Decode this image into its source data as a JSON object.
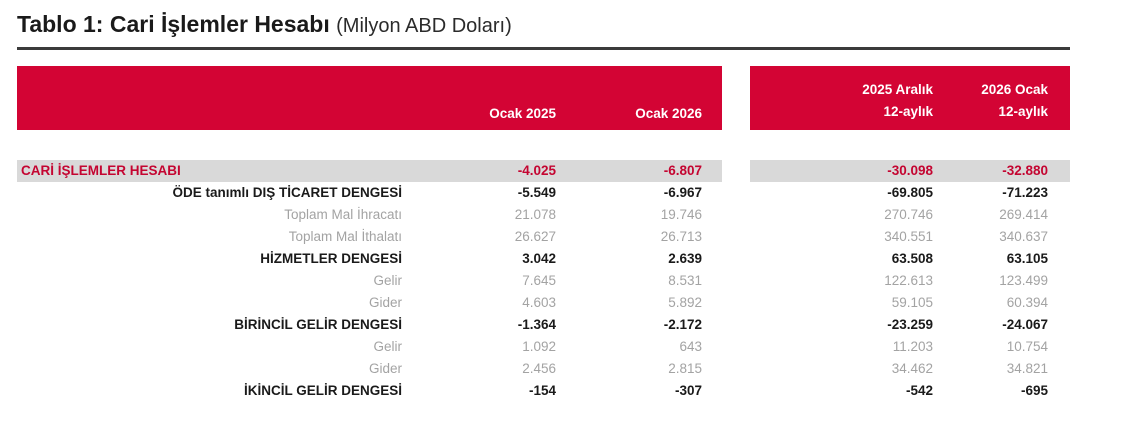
{
  "title": {
    "main": "Tablo 1: Cari İşlemler Hesabı",
    "unit": "(Milyon ABD Doları)"
  },
  "header": {
    "monthly_columns": [
      "Ocak 2025",
      "Ocak 2026"
    ],
    "annual_columns": [
      {
        "line1": "2025 Aralık",
        "line2": "12-aylık"
      },
      {
        "line1": "2026 Ocak",
        "line2": "12-aylık"
      }
    ]
  },
  "colors": {
    "header_red": "#D30434",
    "accent_text": "#C40531",
    "row_highlight_bg": "#D9D9D9",
    "muted_text": "#A3A3A3",
    "dark_text": "#1A1A1A",
    "title_rule": "#3B3B3B"
  },
  "rows": [
    {
      "label": "CARİ İŞLEMLER HESABI",
      "values": [
        "-4.025",
        "-6.807",
        "-30.098",
        "-32.880"
      ]
    },
    {
      "label": "ÖDE tanımlı DIŞ TİCARET DENGESİ",
      "values": [
        "-5.549",
        "-6.967",
        "-69.805",
        "-71.223"
      ]
    },
    {
      "label": "Toplam Mal İhracatı",
      "values": [
        "21.078",
        "19.746",
        "270.746",
        "269.414"
      ]
    },
    {
      "label": "Toplam Mal İthalatı",
      "values": [
        "26.627",
        "26.713",
        "340.551",
        "340.637"
      ]
    },
    {
      "label": "HİZMETLER DENGESİ",
      "values": [
        "3.042",
        "2.639",
        "63.508",
        "63.105"
      ]
    },
    {
      "label": "Gelir",
      "values": [
        "7.645",
        "8.531",
        "122.613",
        "123.499"
      ]
    },
    {
      "label": "Gider",
      "values": [
        "4.603",
        "5.892",
        "59.105",
        "60.394"
      ]
    },
    {
      "label": "BİRİNCİL GELİR DENGESİ",
      "values": [
        "-1.364",
        "-2.172",
        "-23.259",
        "-24.067"
      ]
    },
    {
      "label": "Gelir",
      "values": [
        "1.092",
        "643",
        "11.203",
        "10.754"
      ]
    },
    {
      "label": "Gider",
      "values": [
        "2.456",
        "2.815",
        "34.462",
        "34.821"
      ]
    },
    {
      "label": "İKİNCİL GELİR DENGESİ",
      "values": [
        "-154",
        "-307",
        "-542",
        "-695"
      ]
    }
  ]
}
